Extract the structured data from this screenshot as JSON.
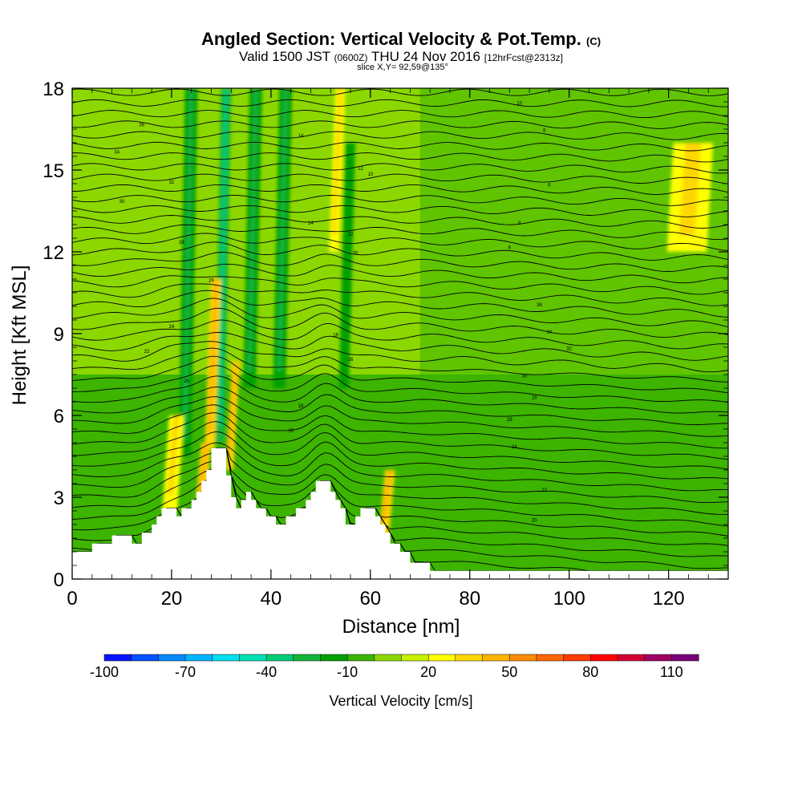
{
  "title": {
    "main": "Angled Section: Vertical Velocity & Pot.Temp.",
    "copyright": "(C)",
    "valid_prefix": "Valid 1500 JST",
    "valid_utc": "(0600Z)",
    "valid_date": "THU 24 Nov 2016",
    "forecast": "[12hrFcst@2313z]",
    "slice": "slice X,Y= 92,59@135°"
  },
  "chart_data": {
    "type": "heatmap",
    "title": "Angled Section: Vertical Velocity & Pot.Temp.",
    "xlabel": "Distance [nm]",
    "ylabel": "Height [Kft MSL]",
    "xlim": [
      0,
      132
    ],
    "ylim": [
      0,
      18
    ],
    "xticks": [
      0,
      20,
      40,
      60,
      80,
      100,
      120
    ],
    "yticks": [
      0,
      3,
      6,
      9,
      12,
      15,
      18
    ],
    "colorbar": {
      "label": "Vertical Velocity [cm/s]",
      "min": -100,
      "max": 120,
      "step": 10,
      "tick_labels": [
        "-100",
        "-70",
        "-40",
        "-10",
        "20",
        "50",
        "80",
        "110"
      ],
      "colors": [
        "#0a14ff",
        "#0050ff",
        "#0088ff",
        "#00b4ff",
        "#00e0ee",
        "#00e0b4",
        "#00cc78",
        "#14b43c",
        "#00a000",
        "#3cb400",
        "#8cd700",
        "#c8f000",
        "#ffff00",
        "#ffd700",
        "#ffb400",
        "#ff8c00",
        "#ff6400",
        "#ff3c00",
        "#ff0000",
        "#d20032",
        "#a00064",
        "#780078"
      ]
    },
    "velocity_features": [
      {
        "x": 23,
        "width": 2.5,
        "top": 18,
        "bottom": 4.5,
        "value": -20
      },
      {
        "x": 30,
        "width": 2.0,
        "top": 18,
        "bottom": 5.0,
        "value": -25
      },
      {
        "x": 36,
        "width": 2.5,
        "top": 18,
        "bottom": 7.0,
        "value": -20
      },
      {
        "x": 42,
        "width": 2.5,
        "top": 18,
        "bottom": 7.0,
        "value": -20
      },
      {
        "x": 55,
        "width": 2.0,
        "top": 16,
        "bottom": 7.0,
        "value": -15
      },
      {
        "x": 28,
        "width": 2.0,
        "top": 11,
        "bottom": 4.8,
        "value": 35
      },
      {
        "x": 32,
        "width": 1.5,
        "top": 8,
        "bottom": 4.0,
        "value": 30
      },
      {
        "x": 20,
        "width": 3.0,
        "top": 6,
        "bottom": 2.5,
        "value": 25
      },
      {
        "x": 26,
        "width": 2.0,
        "top": 5,
        "bottom": 2.5,
        "value": 30
      },
      {
        "x": 53,
        "width": 2.0,
        "top": 18,
        "bottom": 12,
        "value": 25
      },
      {
        "x": 63,
        "width": 2.0,
        "top": 4,
        "bottom": 1.5,
        "value": 30
      },
      {
        "x": 124,
        "width": 8.0,
        "top": 16,
        "bottom": 12,
        "value": 20
      }
    ],
    "terrain": [
      [
        0,
        1.0
      ],
      [
        4,
        1.0
      ],
      [
        4,
        1.3
      ],
      [
        8,
        1.3
      ],
      [
        8,
        1.6
      ],
      [
        12,
        1.6
      ],
      [
        12,
        1.3
      ],
      [
        14,
        1.3
      ],
      [
        14,
        1.7
      ],
      [
        16,
        1.7
      ],
      [
        16,
        2.0
      ],
      [
        17,
        2.0
      ],
      [
        17,
        2.3
      ],
      [
        18,
        2.3
      ],
      [
        18,
        2.6
      ],
      [
        21,
        2.6
      ],
      [
        21,
        2.3
      ],
      [
        22,
        2.3
      ],
      [
        22,
        2.6
      ],
      [
        24,
        2.6
      ],
      [
        24,
        2.9
      ],
      [
        25,
        2.9
      ],
      [
        25,
        3.2
      ],
      [
        26,
        3.2
      ],
      [
        26,
        3.6
      ],
      [
        27,
        3.6
      ],
      [
        27,
        4.0
      ],
      [
        28,
        4.0
      ],
      [
        28,
        4.8
      ],
      [
        31,
        4.8
      ],
      [
        31,
        3.8
      ],
      [
        32,
        3.8
      ],
      [
        32,
        3.0
      ],
      [
        33,
        3.0
      ],
      [
        33,
        2.6
      ],
      [
        34,
        2.6
      ],
      [
        34,
        2.9
      ],
      [
        35,
        2.9
      ],
      [
        35,
        3.2
      ],
      [
        36,
        3.2
      ],
      [
        36,
        2.9
      ],
      [
        37,
        2.9
      ],
      [
        37,
        2.6
      ],
      [
        39,
        2.6
      ],
      [
        39,
        2.3
      ],
      [
        41,
        2.3
      ],
      [
        41,
        2.0
      ],
      [
        43,
        2.0
      ],
      [
        43,
        2.3
      ],
      [
        45,
        2.3
      ],
      [
        45,
        2.6
      ],
      [
        47,
        2.6
      ],
      [
        47,
        2.9
      ],
      [
        48,
        2.9
      ],
      [
        48,
        3.2
      ],
      [
        49,
        3.2
      ],
      [
        49,
        3.6
      ],
      [
        52,
        3.6
      ],
      [
        52,
        3.2
      ],
      [
        53,
        3.2
      ],
      [
        53,
        2.9
      ],
      [
        54,
        2.9
      ],
      [
        54,
        2.6
      ],
      [
        55,
        2.6
      ],
      [
        55,
        2.0
      ],
      [
        57,
        2.0
      ],
      [
        57,
        2.3
      ],
      [
        58,
        2.3
      ],
      [
        58,
        2.6
      ],
      [
        61,
        2.6
      ],
      [
        61,
        2.3
      ],
      [
        62,
        2.3
      ],
      [
        62,
        2.0
      ],
      [
        63,
        2.0
      ],
      [
        63,
        1.7
      ],
      [
        64,
        1.7
      ],
      [
        64,
        1.3
      ],
      [
        66,
        1.3
      ],
      [
        66,
        1.0
      ],
      [
        68,
        1.0
      ],
      [
        68,
        0.6
      ],
      [
        72,
        0.6
      ],
      [
        72,
        0.3
      ],
      [
        132,
        0.3
      ],
      [
        132,
        0
      ]
    ],
    "theta_labels": [
      "36",
      "34",
      "32",
      "30",
      "28",
      "26",
      "24",
      "22",
      "20",
      "18",
      "16",
      "14",
      "12",
      "10",
      "8",
      "6"
    ]
  },
  "xlabel": "Distance [nm]",
  "ylabel": "Height [Kft MSL]",
  "colorbar_label": "Vertical Velocity [cm/s]"
}
